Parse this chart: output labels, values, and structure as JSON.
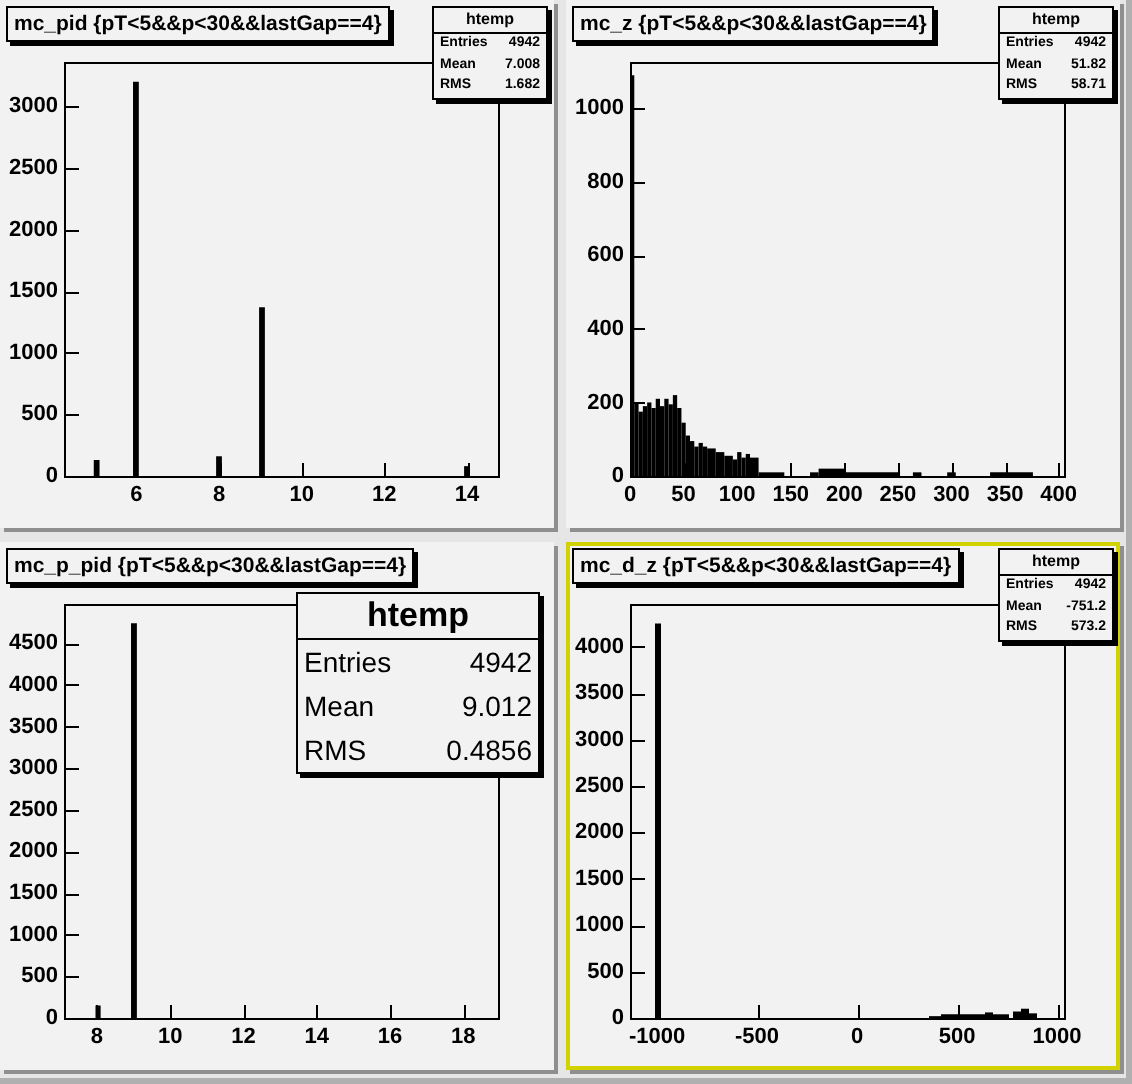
{
  "chart_data": [
    {
      "type": "histogram",
      "title": "mc_pid {pT<5&&p<30&&lastGap==4}",
      "bins": [
        4.97,
        5.11,
        5.92,
        6.06,
        7.93,
        8.07,
        8.97,
        9.11,
        13.93,
        14.07
      ],
      "values": [
        130,
        0,
        3200,
        0,
        160,
        0,
        1370,
        0,
        80
      ],
      "color": "#000000",
      "xlim": [
        4.25,
        14.75
      ],
      "xticks": [
        6,
        8,
        10,
        12,
        14
      ],
      "ylim": [
        0,
        3360
      ],
      "yticks": [
        0,
        500,
        1000,
        1500,
        2000,
        2500,
        3000
      ],
      "annotations": [
        "htemp",
        "Entries 4942",
        "Mean 7.008",
        "RMS 1.682"
      ]
    },
    {
      "type": "histogram",
      "title": "mc_z {pT<5&&p<30&&lastGap==4}",
      "bins": [
        0,
        4,
        8,
        12,
        16,
        20,
        24,
        28,
        32,
        36,
        40,
        44,
        48,
        52,
        56,
        60,
        64,
        68,
        72,
        80,
        88,
        96,
        100,
        104,
        108,
        112,
        120,
        144,
        168,
        176,
        200,
        252,
        264,
        272,
        296,
        304,
        336,
        376
      ],
      "values": [
        1090,
        200,
        175,
        190,
        200,
        185,
        210,
        190,
        210,
        195,
        220,
        185,
        145,
        110,
        95,
        80,
        90,
        80,
        75,
        65,
        55,
        45,
        65,
        50,
        60,
        50,
        10,
        0,
        10,
        20,
        10,
        0,
        10,
        0,
        10,
        0,
        10
      ],
      "color": "#000000",
      "xlim": [
        0,
        405
      ],
      "xticks": [
        0,
        50,
        100,
        150,
        200,
        250,
        300,
        350,
        400
      ],
      "ylim": [
        0,
        1126
      ],
      "yticks": [
        0,
        200,
        400,
        600,
        800,
        1000
      ],
      "annotations": [
        "htemp",
        "Entries 4942",
        "Mean 51.82",
        "RMS 58.71"
      ]
    },
    {
      "type": "histogram",
      "title": "mc_p_pid {pT<5&&p<30&&lastGap==4}",
      "bins": [
        7.96,
        8.1,
        8.93,
        9.09
      ],
      "values": [
        150,
        0,
        4740
      ],
      "color": "#000000",
      "xlim": [
        7.1,
        18.95
      ],
      "xticks": [
        8,
        10,
        12,
        14,
        16,
        18
      ],
      "ylim": [
        0,
        4970
      ],
      "yticks": [
        0,
        500,
        1000,
        1500,
        2000,
        2500,
        3000,
        3500,
        4000,
        4500
      ],
      "annotations": [
        "htemp",
        "Entries 4942",
        "Mean 9.012",
        "RMS 0.4856"
      ]
    },
    {
      "type": "histogram",
      "title": "mc_d_z {pT<5&&p<30&&lastGap==4}",
      "bins": [
        -1010,
        -980,
        360,
        420,
        640,
        680,
        760,
        780,
        820,
        860,
        900
      ],
      "values": [
        4250,
        0,
        20,
        40,
        60,
        40,
        0,
        70,
        100,
        50
      ],
      "color": "#000000",
      "xlim": [
        -1135,
        1035
      ],
      "xticks": [
        -1000,
        -500,
        0,
        500,
        1000
      ],
      "ylim": [
        0,
        4460
      ],
      "yticks": [
        0,
        500,
        1000,
        1500,
        2000,
        2500,
        3000,
        3500,
        4000
      ],
      "annotations": [
        "htemp",
        "Entries 4942",
        "Mean -751.2",
        "RMS 573.2"
      ]
    }
  ]
}
